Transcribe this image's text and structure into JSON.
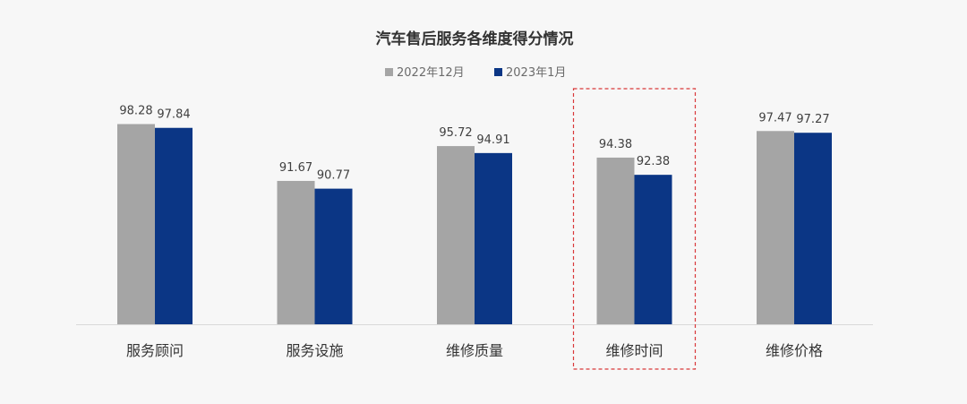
{
  "chart_data": {
    "type": "bar",
    "title": "汽车售后服务各维度得分情况",
    "categories": [
      "服务顾问",
      "服务设施",
      "维修质量",
      "维修时间",
      "维修价格"
    ],
    "series": [
      {
        "name": "2022年12月",
        "color": "#a5a5a5",
        "values": [
          98.28,
          91.67,
          95.72,
          94.38,
          97.47
        ]
      },
      {
        "name": "2023年1月",
        "color": "#0b3685",
        "values": [
          97.84,
          90.77,
          94.91,
          92.38,
          97.27
        ]
      }
    ],
    "ylim": [
      75,
      100
    ],
    "xlabel": "",
    "ylabel": "",
    "grid": false,
    "legend_position": "top-center",
    "highlighted_category": "维修时间",
    "highlight_color": "#d9383a"
  }
}
